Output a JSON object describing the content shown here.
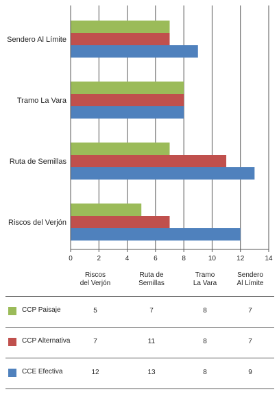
{
  "chart_data": {
    "type": "bar",
    "orientation": "horizontal",
    "categories": [
      "Sendero Al Límite",
      "Tramo La Vara",
      "Ruta de Semillas",
      "Riscos del Verjón"
    ],
    "series": [
      {
        "name": "CCP Paisaje",
        "color": "#9bbb59",
        "values": [
          7,
          8,
          7,
          5
        ]
      },
      {
        "name": "CCP Alternativa",
        "color": "#c0504d",
        "values": [
          7,
          8,
          11,
          7
        ]
      },
      {
        "name": "CCE Efectiva",
        "color": "#4f81bd",
        "values": [
          9,
          8,
          13,
          12
        ]
      }
    ],
    "xlim": [
      0,
      14
    ],
    "xticks": [
      "0",
      "2",
      "4",
      "6",
      "8",
      "10",
      "12",
      "14"
    ],
    "grid": true
  },
  "table": {
    "headers": [
      "Riscos\ndel Verjón",
      "Ruta de\nSemillas",
      "Tramo\nLa Vara",
      "Sendero\nAl Límite"
    ],
    "rows": [
      {
        "label": "CCP Paisaje",
        "color": "#9bbb59",
        "values": [
          "5",
          "7",
          "8",
          "7"
        ]
      },
      {
        "label": "CCP Alternativa",
        "color": "#c0504d",
        "values": [
          "7",
          "11",
          "8",
          "7"
        ]
      },
      {
        "label": "CCE Efectiva",
        "color": "#4f81bd",
        "values": [
          "12",
          "13",
          "8",
          "9"
        ]
      }
    ]
  }
}
